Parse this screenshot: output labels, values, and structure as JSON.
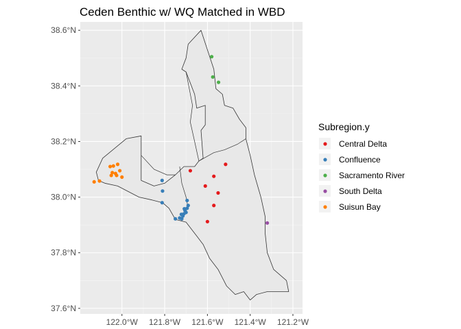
{
  "title": "Ceden Benthic w/ WQ Matched in WBD",
  "axes": {
    "x_ticks": [
      {
        "value": -122.0,
        "label": "122.0°W"
      },
      {
        "value": -121.8,
        "label": "121.8°W"
      },
      {
        "value": -121.6,
        "label": "121.6°W"
      },
      {
        "value": -121.4,
        "label": "121.4°W"
      },
      {
        "value": -121.2,
        "label": "121.2°W"
      }
    ],
    "y_ticks": [
      {
        "value": 37.6,
        "label": "37.6°N"
      },
      {
        "value": 37.8,
        "label": "37.8°N"
      },
      {
        "value": 38.0,
        "label": "38.0°N"
      },
      {
        "value": 38.2,
        "label": "38.2°N"
      },
      {
        "value": 38.4,
        "label": "38.4°N"
      },
      {
        "value": 38.6,
        "label": "38.6°N"
      }
    ],
    "xlim": [
      -122.195,
      -121.155
    ],
    "ylim": [
      37.58,
      38.63
    ]
  },
  "legend": {
    "title": "Subregion.y",
    "placement": "right",
    "items": [
      {
        "key": "central-delta",
        "label": "Central Delta",
        "color": "#e41a1c"
      },
      {
        "key": "confluence",
        "label": "Confluence",
        "color": "#377eb8"
      },
      {
        "key": "sacramento-river",
        "label": "Sacramento River",
        "color": "#4daf4a"
      },
      {
        "key": "south-delta",
        "label": "South Delta",
        "color": "#984ea3"
      },
      {
        "key": "suisun-bay",
        "label": "Suisun Bay",
        "color": "#ff7f00"
      }
    ]
  },
  "colors": {
    "panel_bg": "#ebebeb",
    "grid_major": "#ffffff",
    "polygon_fill": "#e8e8e8",
    "polygon_stroke": "#333333"
  },
  "chart_data": {
    "type": "scatter",
    "title": "Ceden Benthic w/ WQ Matched in WBD",
    "xlabel": "",
    "ylabel": "",
    "xlim": [
      -122.195,
      -121.155
    ],
    "ylim": [
      37.58,
      38.63
    ],
    "grid": true,
    "boundary": [
      [
        -122.11,
        38.06
      ],
      [
        -122.12,
        38.09
      ],
      [
        -122.09,
        38.14
      ],
      [
        -121.98,
        38.21
      ],
      [
        -121.91,
        38.22
      ],
      [
        -121.91,
        38.06
      ],
      [
        -121.85,
        38.04
      ],
      [
        -121.8,
        38.05
      ],
      [
        -121.75,
        38.08
      ],
      [
        -121.71,
        38.11
      ],
      [
        -121.66,
        38.11
      ],
      [
        -121.64,
        38.13
      ],
      [
        -121.62,
        38.14
      ],
      [
        -121.63,
        38.24
      ],
      [
        -121.61,
        38.26
      ],
      [
        -121.61,
        38.33
      ],
      [
        -121.65,
        38.32
      ],
      [
        -121.66,
        38.37
      ],
      [
        -121.7,
        38.45
      ],
      [
        -121.72,
        38.46
      ],
      [
        -121.7,
        38.5
      ],
      [
        -121.69,
        38.55
      ],
      [
        -121.63,
        38.6
      ],
      [
        -121.57,
        38.46
      ],
      [
        -121.56,
        38.39
      ],
      [
        -121.53,
        38.37
      ],
      [
        -121.52,
        38.33
      ],
      [
        -121.48,
        38.32
      ],
      [
        -121.45,
        38.28
      ],
      [
        -121.42,
        38.25
      ],
      [
        -121.42,
        38.21
      ],
      [
        -121.4,
        38.15
      ],
      [
        -121.38,
        38.08
      ],
      [
        -121.35,
        38.0
      ],
      [
        -121.33,
        37.93
      ],
      [
        -121.33,
        37.87
      ],
      [
        -121.32,
        37.8
      ],
      [
        -121.29,
        37.74
      ],
      [
        -121.23,
        37.7
      ],
      [
        -121.22,
        37.66
      ],
      [
        -121.26,
        37.66
      ],
      [
        -121.32,
        37.66
      ],
      [
        -121.37,
        37.65
      ],
      [
        -121.4,
        37.63
      ],
      [
        -121.43,
        37.66
      ],
      [
        -121.47,
        37.65
      ],
      [
        -121.51,
        37.68
      ],
      [
        -121.55,
        37.74
      ],
      [
        -121.59,
        37.78
      ],
      [
        -121.62,
        37.83
      ],
      [
        -121.65,
        37.86
      ],
      [
        -121.7,
        37.91
      ],
      [
        -121.75,
        37.92
      ],
      [
        -121.78,
        37.96
      ],
      [
        -121.81,
        37.98
      ],
      [
        -121.86,
        37.99
      ],
      [
        -121.92,
        38.0
      ],
      [
        -121.97,
        38.02
      ],
      [
        -122.02,
        38.04
      ],
      [
        -122.08,
        38.05
      ]
    ],
    "internal_lines": [
      [
        [
          -121.91,
          38.15
        ],
        [
          -121.85,
          38.1
        ],
        [
          -121.79,
          38.08
        ],
        [
          -121.75,
          38.08
        ]
      ],
      [
        [
          -121.73,
          38.11
        ],
        [
          -121.72,
          38.05
        ],
        [
          -121.7,
          38.0
        ],
        [
          -121.69,
          37.96
        ]
      ],
      [
        [
          -121.64,
          38.13
        ],
        [
          -121.66,
          38.2
        ],
        [
          -121.68,
          38.27
        ],
        [
          -121.67,
          38.33
        ],
        [
          -121.7,
          38.45
        ]
      ],
      [
        [
          -121.64,
          38.13
        ],
        [
          -121.57,
          38.16
        ],
        [
          -121.52,
          38.17
        ],
        [
          -121.46,
          38.19
        ],
        [
          -121.42,
          38.21
        ]
      ]
    ],
    "series": [
      {
        "name": "Central Delta",
        "color": "#e41a1c",
        "points": [
          [
            -121.68,
            38.095
          ],
          [
            -121.61,
            38.04
          ],
          [
            -121.57,
            38.075
          ],
          [
            -121.515,
            38.118
          ],
          [
            -121.57,
            37.97
          ],
          [
            -121.6,
            37.912
          ],
          [
            -121.55,
            38.015
          ]
        ]
      },
      {
        "name": "Confluence",
        "color": "#377eb8",
        "points": [
          [
            -121.812,
            38.06
          ],
          [
            -121.81,
            38.022
          ],
          [
            -121.812,
            37.98
          ],
          [
            -121.695,
            37.988
          ],
          [
            -121.69,
            37.97
          ],
          [
            -121.695,
            37.96
          ],
          [
            -121.705,
            37.952
          ],
          [
            -121.71,
            37.94
          ],
          [
            -121.715,
            37.932
          ],
          [
            -121.72,
            37.922
          ],
          [
            -121.73,
            37.925
          ],
          [
            -121.75,
            37.922
          ],
          [
            -121.7,
            37.945
          ],
          [
            -121.722,
            37.938
          ],
          [
            -121.708,
            37.958
          ]
        ]
      },
      {
        "name": "Sacramento River",
        "color": "#4daf4a",
        "points": [
          [
            -121.58,
            38.505
          ],
          [
            -121.575,
            38.432
          ],
          [
            -121.548,
            38.413
          ]
        ]
      },
      {
        "name": "South Delta",
        "color": "#984ea3",
        "points": [
          [
            -121.32,
            37.907
          ]
        ]
      },
      {
        "name": "Suisun Bay",
        "color": "#ff7f00",
        "points": [
          [
            -122.13,
            38.055
          ],
          [
            -122.105,
            38.058
          ],
          [
            -122.055,
            38.11
          ],
          [
            -122.04,
            38.112
          ],
          [
            -122.02,
            38.118
          ],
          [
            -122.01,
            38.095
          ],
          [
            -122.03,
            38.085
          ],
          [
            -122.045,
            38.088
          ],
          [
            -122.05,
            38.078
          ],
          [
            -122.025,
            38.078
          ],
          [
            -122.0,
            38.072
          ]
        ]
      }
    ]
  }
}
